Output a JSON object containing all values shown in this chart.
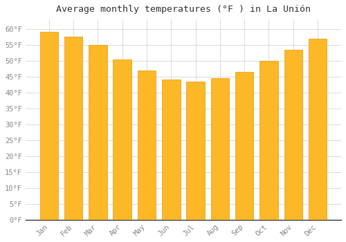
{
  "title": "Average monthly temperatures (°F ) in La Unión",
  "months": [
    "Jan",
    "Feb",
    "Mar",
    "Apr",
    "May",
    "Jun",
    "Jul",
    "Aug",
    "Sep",
    "Oct",
    "Nov",
    "Dec"
  ],
  "values": [
    59,
    57.5,
    55,
    50.5,
    47,
    44,
    43.5,
    44.5,
    46.5,
    50,
    53.5,
    57
  ],
  "bar_color": "#FDB827",
  "bar_edge_color": "#E8960A",
  "background_color": "#FFFFFF",
  "grid_color": "#CCCCCC",
  "tick_label_color": "#888888",
  "title_color": "#333333",
  "ylim": [
    0,
    63
  ],
  "yticks": [
    0,
    5,
    10,
    15,
    20,
    25,
    30,
    35,
    40,
    45,
    50,
    55,
    60
  ],
  "title_fontsize": 9.5,
  "tick_fontsize": 7.5,
  "bar_width": 0.75
}
